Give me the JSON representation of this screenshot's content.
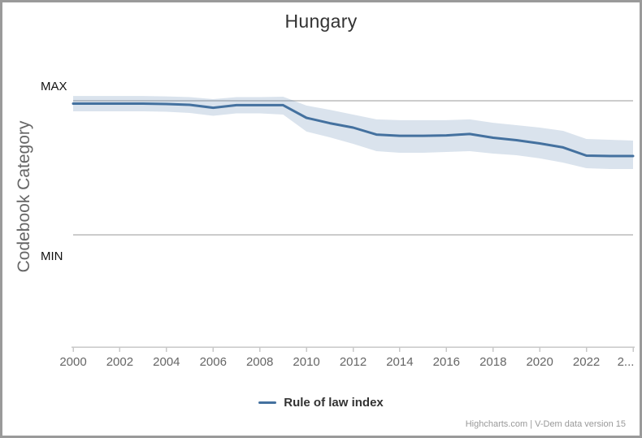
{
  "title": "Hungary",
  "y_axis": {
    "title": "Codebook Category",
    "max_label": "MAX",
    "min_label": "MIN"
  },
  "x_axis": {
    "tick_labels": [
      "2000",
      "2002",
      "2004",
      "2006",
      "2008",
      "2010",
      "2012",
      "2014",
      "2016",
      "2018",
      "2020",
      "2022",
      "2..."
    ]
  },
  "legend": {
    "label": "Rule of law index"
  },
  "credits": "Highcharts.com | V-Dem data version 15",
  "colors": {
    "line": "#44719f",
    "band_fill": "rgba(69,114,167,0.20)",
    "gridline": "#cccccc",
    "axis_line": "#c8c8c8",
    "tick": "#c8c8c8",
    "axis_label": "#666666",
    "title": "#333333",
    "credits": "#999999",
    "border": "#9a9a9a"
  },
  "chart_data": {
    "type": "line",
    "title": "Hungary",
    "xlabel": "",
    "ylabel": "Codebook Category",
    "y_axis_tick_names": [
      "MAX",
      "MIN"
    ],
    "ylim_note": "values normalized so MIN gridline = 0 and MAX gridline = 1",
    "grid": "horizontal lines at MAX and MIN only",
    "legend_position": "bottom-center",
    "x": [
      2000,
      2001,
      2002,
      2003,
      2004,
      2005,
      2006,
      2007,
      2008,
      2009,
      2010,
      2011,
      2012,
      2013,
      2014,
      2015,
      2016,
      2017,
      2018,
      2019,
      2020,
      2021,
      2022,
      2023,
      2024
    ],
    "series": [
      {
        "name": "Rule of law index",
        "values": [
          0.979,
          0.979,
          0.979,
          0.979,
          0.976,
          0.97,
          0.948,
          0.967,
          0.967,
          0.967,
          0.873,
          0.833,
          0.8,
          0.748,
          0.739,
          0.739,
          0.742,
          0.752,
          0.724,
          0.706,
          0.682,
          0.652,
          0.591,
          0.588,
          0.588
        ],
        "ci_high": [
          1.036,
          1.036,
          1.036,
          1.036,
          1.033,
          1.027,
          1.012,
          1.027,
          1.027,
          1.03,
          0.964,
          0.933,
          0.897,
          0.861,
          0.855,
          0.855,
          0.855,
          0.861,
          0.836,
          0.818,
          0.8,
          0.776,
          0.715,
          0.709,
          0.703
        ],
        "ci_low": [
          0.921,
          0.921,
          0.921,
          0.921,
          0.918,
          0.909,
          0.888,
          0.906,
          0.906,
          0.897,
          0.77,
          0.727,
          0.679,
          0.624,
          0.612,
          0.612,
          0.618,
          0.624,
          0.606,
          0.594,
          0.57,
          0.539,
          0.497,
          0.491,
          0.491
        ]
      }
    ]
  }
}
